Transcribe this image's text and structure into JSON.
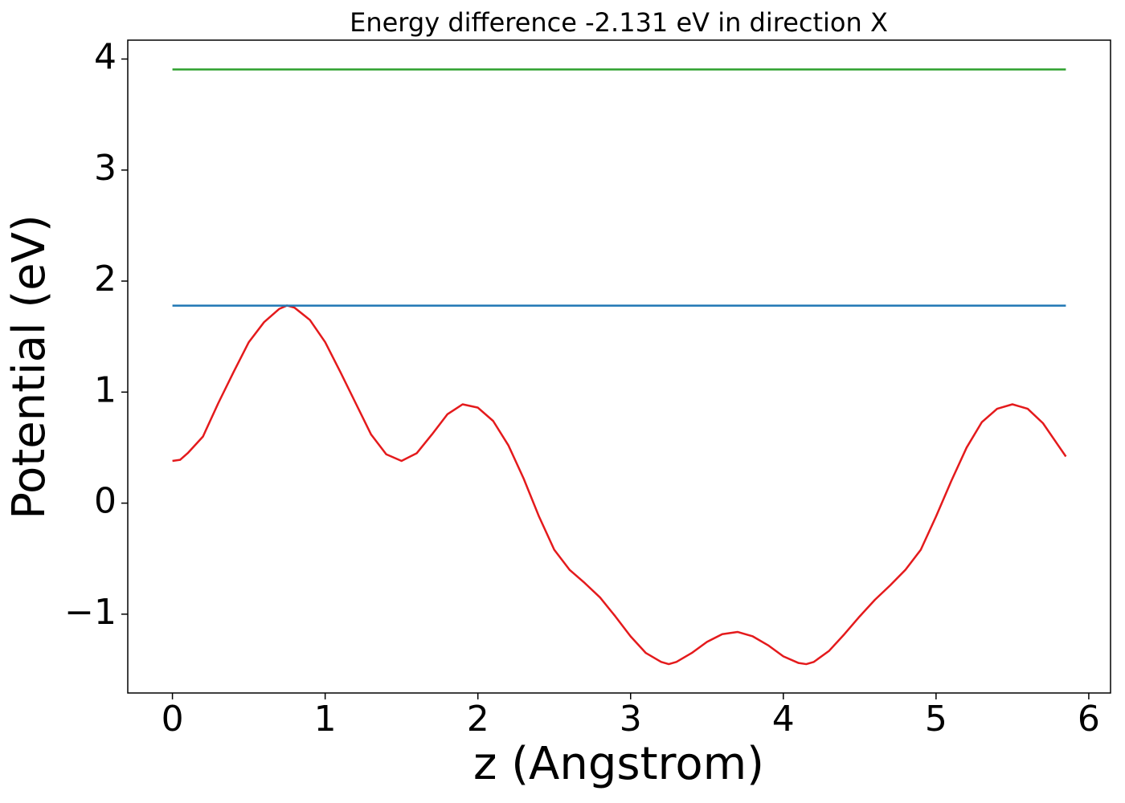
{
  "chart_data": {
    "type": "line",
    "title": "Energy difference -2.131 eV in direction X",
    "x_label": "z (Angstrom)",
    "y_label": "Potential (eV)",
    "xlim": [
      -0.2925,
      6.1425
    ],
    "ylim": [
      -1.71,
      4.17
    ],
    "xticks": [
      0,
      1,
      2,
      3,
      4,
      5,
      6
    ],
    "yticks": [
      {
        "value": -1,
        "label": "−1"
      },
      0,
      1,
      2,
      3,
      4
    ],
    "series": [
      {
        "color": "#e41a1c",
        "x": [
          0,
          0.05,
          0.1,
          0.2,
          0.3,
          0.4,
          0.5,
          0.6,
          0.7,
          0.75,
          0.8,
          0.9,
          1.0,
          1.1,
          1.2,
          1.3,
          1.4,
          1.5,
          1.6,
          1.7,
          1.8,
          1.9,
          2.0,
          2.1,
          2.2,
          2.3,
          2.4,
          2.5,
          2.6,
          2.7,
          2.8,
          2.9,
          3.0,
          3.1,
          3.2,
          3.25,
          3.3,
          3.4,
          3.5,
          3.6,
          3.7,
          3.8,
          3.9,
          4.0,
          4.1,
          4.15,
          4.2,
          4.3,
          4.4,
          4.5,
          4.6,
          4.7,
          4.8,
          4.9,
          5.0,
          5.1,
          5.2,
          5.3,
          5.4,
          5.5,
          5.6,
          5.7,
          5.8,
          5.85
        ],
        "values": [
          0.38,
          0.39,
          0.45,
          0.6,
          0.9,
          1.18,
          1.45,
          1.63,
          1.75,
          1.78,
          1.76,
          1.65,
          1.45,
          1.18,
          0.9,
          0.62,
          0.44,
          0.38,
          0.45,
          0.62,
          0.8,
          0.89,
          0.86,
          0.74,
          0.52,
          0.22,
          -0.12,
          -0.42,
          -0.6,
          -0.72,
          -0.85,
          -1.02,
          -1.2,
          -1.35,
          -1.43,
          -1.45,
          -1.43,
          -1.35,
          -1.25,
          -1.18,
          -1.16,
          -1.2,
          -1.28,
          -1.38,
          -1.44,
          -1.45,
          -1.43,
          -1.33,
          -1.18,
          -1.02,
          -0.87,
          -0.74,
          -0.6,
          -0.42,
          -0.12,
          0.2,
          0.5,
          0.73,
          0.85,
          0.89,
          0.85,
          0.72,
          0.52,
          0.42
        ]
      },
      {
        "color": "#2ca02c",
        "x": [
          0,
          5.85
        ],
        "values": [
          3.906,
          3.906
        ]
      },
      {
        "color": "#1f77b4",
        "x": [
          0,
          5.85
        ],
        "values": [
          1.779,
          1.779
        ]
      }
    ]
  }
}
